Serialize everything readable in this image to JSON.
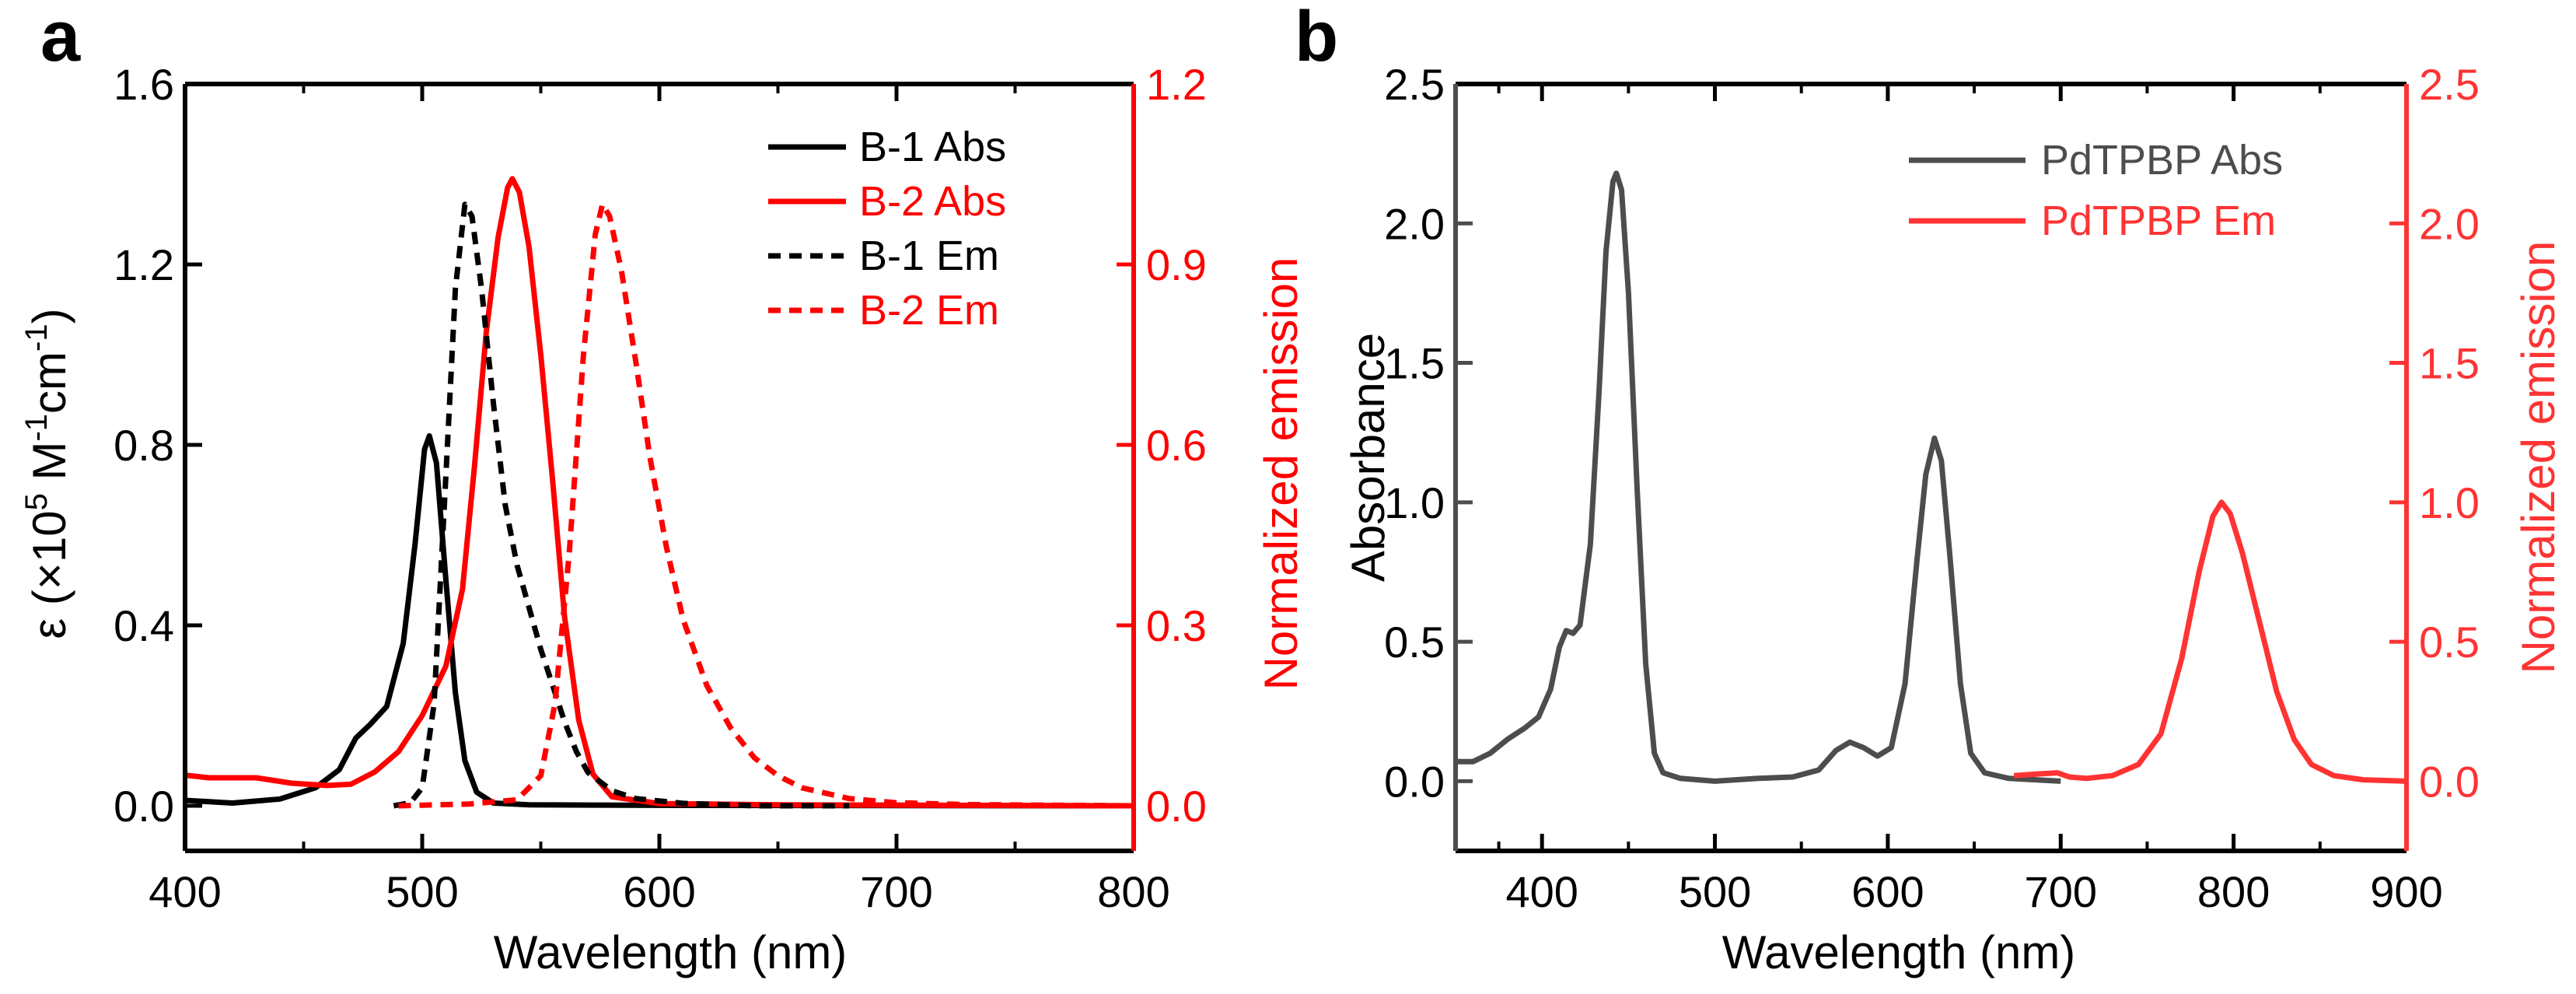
{
  "chart_data": [
    {
      "panel_label": "a",
      "type": "line",
      "xlabel": "Wavelength (nm)",
      "ylabel_left": {
        "pre": "ε (×10",
        "sup1": "5",
        "mid1": " M",
        "sup2": "-1",
        "mid2": "cm",
        "sup3": "-1",
        "post": ")"
      },
      "ylabel_right": "Normalized emission",
      "xlim": [
        400,
        800
      ],
      "ylim_left": [
        -0.1,
        1.6
      ],
      "ylim_right": [
        -0.075,
        1.2
      ],
      "x_ticks": [
        "400",
        "500",
        "600",
        "700",
        "800"
      ],
      "y_ticks_left": [
        "0.0",
        "0.4",
        "0.8",
        "1.2",
        "1.6"
      ],
      "y_ticks_right": [
        "0.0",
        "0.3",
        "0.6",
        "0.9",
        "1.2"
      ],
      "colors": {
        "black": "#000000",
        "red": "#ff0000"
      },
      "legend": [
        {
          "label": "B-1 Abs",
          "color": "#000000",
          "dash": "solid"
        },
        {
          "label": "B-2 Abs",
          "color": "#ff0000",
          "dash": "solid"
        },
        {
          "label": "B-1 Em",
          "color": "#000000",
          "dash": "dashed"
        },
        {
          "label": "B-2 Em",
          "color": "#ff0000",
          "dash": "dashed"
        }
      ],
      "series": [
        {
          "name": "B-1 Abs",
          "axis": "left",
          "color": "#000000",
          "dash": "solid",
          "points": [
            [
              400,
              0.012
            ],
            [
              420,
              0.006
            ],
            [
              440,
              0.015
            ],
            [
              455,
              0.04
            ],
            [
              465,
              0.08
            ],
            [
              472,
              0.15
            ],
            [
              478,
              0.18
            ],
            [
              485,
              0.22
            ],
            [
              492,
              0.36
            ],
            [
              497,
              0.58
            ],
            [
              501,
              0.79
            ],
            [
              503,
              0.82
            ],
            [
              506,
              0.76
            ],
            [
              510,
              0.5
            ],
            [
              514,
              0.25
            ],
            [
              518,
              0.1
            ],
            [
              523,
              0.03
            ],
            [
              530,
              0.006
            ],
            [
              545,
              0.002
            ],
            [
              600,
              0.001
            ],
            [
              800,
              0.0
            ]
          ]
        },
        {
          "name": "B-2 Abs",
          "axis": "left",
          "color": "#ff0000",
          "dash": "solid",
          "points": [
            [
              400,
              0.068
            ],
            [
              410,
              0.062
            ],
            [
              420,
              0.062
            ],
            [
              430,
              0.062
            ],
            [
              445,
              0.05
            ],
            [
              460,
              0.045
            ],
            [
              470,
              0.048
            ],
            [
              480,
              0.075
            ],
            [
              490,
              0.12
            ],
            [
              500,
              0.2
            ],
            [
              510,
              0.31
            ],
            [
              517,
              0.48
            ],
            [
              522,
              0.75
            ],
            [
              527,
              1.05
            ],
            [
              532,
              1.26
            ],
            [
              536,
              1.37
            ],
            [
              538,
              1.39
            ],
            [
              541,
              1.36
            ],
            [
              545,
              1.24
            ],
            [
              550,
              1.0
            ],
            [
              555,
              0.72
            ],
            [
              560,
              0.42
            ],
            [
              566,
              0.19
            ],
            [
              572,
              0.07
            ],
            [
              580,
              0.02
            ],
            [
              600,
              0.005
            ],
            [
              650,
              0.002
            ],
            [
              800,
              0.0
            ]
          ]
        },
        {
          "name": "B-1 Em",
          "axis": "right",
          "color": "#000000",
          "dash": "dashed",
          "points": [
            [
              488,
              0.0
            ],
            [
              495,
              0.005
            ],
            [
              500,
              0.03
            ],
            [
              505,
              0.17
            ],
            [
              510,
              0.55
            ],
            [
              514,
              0.86
            ],
            [
              518,
              1.0
            ],
            [
              521,
              0.98
            ],
            [
              525,
              0.86
            ],
            [
              530,
              0.67
            ],
            [
              535,
              0.5
            ],
            [
              540,
              0.4
            ],
            [
              545,
              0.33
            ],
            [
              550,
              0.26
            ],
            [
              555,
              0.2
            ],
            [
              560,
              0.14
            ],
            [
              565,
              0.09
            ],
            [
              570,
              0.055
            ],
            [
              580,
              0.025
            ],
            [
              590,
              0.012
            ],
            [
              610,
              0.004
            ],
            [
              640,
              0.0
            ],
            [
              680,
              0.0
            ]
          ]
        },
        {
          "name": "B-2 Em",
          "axis": "right",
          "color": "#ff0000",
          "dash": "dashed",
          "points": [
            [
              490,
              0.0
            ],
            [
              520,
              0.003
            ],
            [
              540,
              0.01
            ],
            [
              550,
              0.05
            ],
            [
              556,
              0.17
            ],
            [
              562,
              0.42
            ],
            [
              568,
              0.75
            ],
            [
              573,
              0.95
            ],
            [
              576,
              1.0
            ],
            [
              579,
              0.98
            ],
            [
              584,
              0.89
            ],
            [
              590,
              0.74
            ],
            [
              596,
              0.58
            ],
            [
              603,
              0.43
            ],
            [
              610,
              0.31
            ],
            [
              620,
              0.2
            ],
            [
              630,
              0.13
            ],
            [
              640,
              0.08
            ],
            [
              650,
              0.05
            ],
            [
              660,
              0.03
            ],
            [
              680,
              0.012
            ],
            [
              700,
              0.005
            ],
            [
              730,
              0.002
            ],
            [
              800,
              0.0
            ]
          ]
        }
      ]
    },
    {
      "panel_label": "b",
      "type": "line",
      "xlabel": "Wavelength (nm)",
      "ylabel_left": "Absorbance",
      "ylabel_right": "Normalized emission",
      "xlim": [
        350,
        900
      ],
      "ylim_left": [
        -0.25,
        2.5
      ],
      "ylim_right": [
        -0.25,
        2.5
      ],
      "x_ticks": [
        "400",
        "500",
        "600",
        "700",
        "800",
        "900"
      ],
      "y_ticks_left": [
        "0.0",
        "0.5",
        "1.0",
        "1.5",
        "2.0",
        "2.5"
      ],
      "y_ticks_right": [
        "0.0",
        "0.5",
        "1.0",
        "1.5",
        "2.0",
        "2.5"
      ],
      "colors": {
        "gray": "#4d4d4d",
        "red": "#ff3333"
      },
      "legend": [
        {
          "label": "PdTPBP Abs",
          "color": "#4d4d4d",
          "dash": "solid"
        },
        {
          "label": "PdTPBP Em",
          "color": "#ff3333",
          "dash": "solid"
        }
      ],
      "series": [
        {
          "name": "PdTPBP Abs",
          "axis": "left",
          "color": "#4d4d4d",
          "dash": "solid",
          "points": [
            [
              350,
              0.07
            ],
            [
              360,
              0.07
            ],
            [
              370,
              0.1
            ],
            [
              380,
              0.15
            ],
            [
              390,
              0.19
            ],
            [
              398,
              0.23
            ],
            [
              405,
              0.33
            ],
            [
              410,
              0.48
            ],
            [
              414,
              0.54
            ],
            [
              418,
              0.53
            ],
            [
              422,
              0.56
            ],
            [
              428,
              0.85
            ],
            [
              433,
              1.4
            ],
            [
              437,
              1.9
            ],
            [
              441,
              2.15
            ],
            [
              443,
              2.18
            ],
            [
              446,
              2.12
            ],
            [
              450,
              1.75
            ],
            [
              455,
              1.05
            ],
            [
              460,
              0.42
            ],
            [
              465,
              0.1
            ],
            [
              470,
              0.03
            ],
            [
              480,
              0.01
            ],
            [
              500,
              0.0
            ],
            [
              525,
              0.01
            ],
            [
              545,
              0.015
            ],
            [
              560,
              0.04
            ],
            [
              570,
              0.11
            ],
            [
              578,
              0.14
            ],
            [
              586,
              0.12
            ],
            [
              594,
              0.09
            ],
            [
              602,
              0.12
            ],
            [
              610,
              0.35
            ],
            [
              617,
              0.8
            ],
            [
              622,
              1.1
            ],
            [
              627,
              1.23
            ],
            [
              631,
              1.15
            ],
            [
              636,
              0.8
            ],
            [
              642,
              0.35
            ],
            [
              648,
              0.1
            ],
            [
              656,
              0.03
            ],
            [
              670,
              0.01
            ],
            [
              700,
              0.0
            ]
          ]
        },
        {
          "name": "PdTPBP Em",
          "axis": "right",
          "color": "#ff3333",
          "dash": "solid",
          "points": [
            [
              673,
              0.02
            ],
            [
              685,
              0.025
            ],
            [
              698,
              0.03
            ],
            [
              705,
              0.015
            ],
            [
              715,
              0.01
            ],
            [
              730,
              0.02
            ],
            [
              745,
              0.06
            ],
            [
              758,
              0.17
            ],
            [
              770,
              0.44
            ],
            [
              780,
              0.75
            ],
            [
              788,
              0.95
            ],
            [
              793,
              1.0
            ],
            [
              798,
              0.96
            ],
            [
              805,
              0.82
            ],
            [
              815,
              0.57
            ],
            [
              825,
              0.32
            ],
            [
              835,
              0.15
            ],
            [
              845,
              0.06
            ],
            [
              858,
              0.02
            ],
            [
              875,
              0.005
            ],
            [
              900,
              0.0
            ]
          ]
        }
      ]
    }
  ]
}
